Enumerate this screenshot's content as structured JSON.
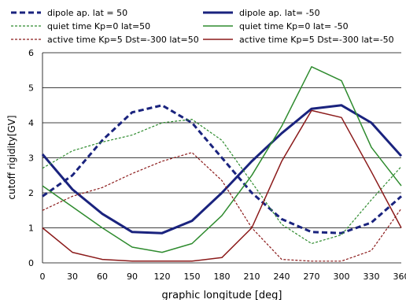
{
  "chart_data": {
    "type": "line",
    "title": "",
    "xlabel": "graphic longitude [deg]",
    "ylabel": "cutoff rigidity[GV]",
    "xlim": [
      0,
      360
    ],
    "ylim": [
      0,
      6
    ],
    "x_ticks": [
      0,
      30,
      60,
      90,
      120,
      150,
      180,
      210,
      240,
      270,
      300,
      330,
      360
    ],
    "y_ticks": [
      0,
      1,
      2,
      3,
      4,
      5,
      6
    ],
    "grid": "horizontal",
    "legend_position": "top",
    "series": [
      {
        "name": "dipole ap. lat = 50",
        "color": "#1a237e",
        "style": "dashed-thick",
        "x": [
          0,
          30,
          60,
          90,
          120,
          150,
          180,
          210,
          240,
          270,
          300,
          330,
          360
        ],
        "y": [
          1.9,
          2.5,
          3.5,
          4.3,
          4.5,
          4.0,
          3.0,
          2.0,
          1.25,
          0.88,
          0.85,
          1.15,
          1.9
        ]
      },
      {
        "name": "dipole ap. lat= -50",
        "color": "#1a237e",
        "style": "solid-thick",
        "x": [
          0,
          30,
          60,
          90,
          120,
          150,
          180,
          210,
          240,
          270,
          300,
          330,
          360
        ],
        "y": [
          3.1,
          2.1,
          1.4,
          0.88,
          0.85,
          1.2,
          2.0,
          2.9,
          3.7,
          4.4,
          4.5,
          4.0,
          3.05
        ]
      },
      {
        "name": "quiet time Kp=0 lat=50",
        "color": "#2e8b2e",
        "style": "dashed",
        "x": [
          0,
          30,
          60,
          90,
          120,
          150,
          180,
          210,
          240,
          270,
          300,
          330,
          360
        ],
        "y": [
          2.7,
          3.2,
          3.45,
          3.65,
          4.0,
          4.1,
          3.5,
          2.3,
          1.1,
          0.55,
          0.8,
          1.8,
          2.75
        ]
      },
      {
        "name": "quiet time Kp=0 lat= -50",
        "color": "#2e8b2e",
        "style": "solid",
        "x": [
          0,
          30,
          60,
          90,
          120,
          150,
          180,
          210,
          240,
          270,
          300,
          330,
          360
        ],
        "y": [
          2.2,
          1.6,
          1.0,
          0.45,
          0.3,
          0.55,
          1.35,
          2.5,
          3.9,
          5.6,
          5.2,
          3.3,
          2.2
        ]
      },
      {
        "name": "active time Kp=5 Dst=-300 lat=50",
        "color": "#8b1a1a",
        "style": "dashed",
        "x": [
          0,
          30,
          60,
          90,
          120,
          150,
          180,
          210,
          240,
          270,
          300,
          330,
          360
        ],
        "y": [
          1.5,
          1.9,
          2.15,
          2.55,
          2.9,
          3.15,
          2.35,
          1.0,
          0.1,
          0.05,
          0.05,
          0.35,
          1.55
        ]
      },
      {
        "name": "active time Kp=5 Dst=-300 lat=-50",
        "color": "#8b1a1a",
        "style": "solid",
        "x": [
          0,
          30,
          60,
          90,
          120,
          150,
          180,
          210,
          240,
          270,
          300,
          330,
          360
        ],
        "y": [
          1.0,
          0.3,
          0.1,
          0.05,
          0.05,
          0.05,
          0.15,
          1.0,
          2.9,
          4.35,
          4.15,
          2.6,
          1.0
        ]
      }
    ]
  }
}
